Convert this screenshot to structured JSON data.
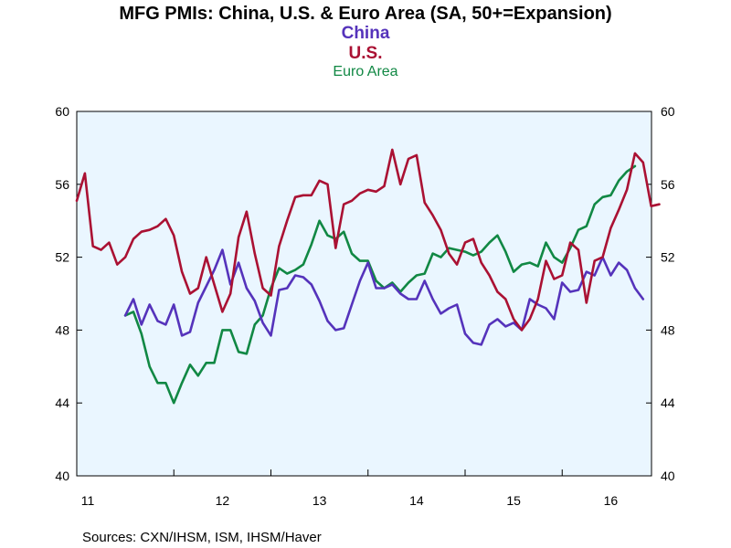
{
  "chart_data": {
    "type": "line",
    "title": "MFG PMIs: China, U.S. & Euro Area (SA, 50+=Expansion)",
    "legend": [
      {
        "name": "China",
        "color": "#5533bb"
      },
      {
        "name": "U.S.",
        "color": "#aa1133"
      },
      {
        "name": "Euro Area",
        "color": "#118844"
      }
    ],
    "ylim": [
      40,
      60
    ],
    "yticks": [
      40,
      44,
      48,
      52,
      56,
      60
    ],
    "yticks_labels": [
      "40",
      "44",
      "48",
      "52",
      "56",
      "60"
    ],
    "xlim": [
      2011.0,
      2016.92
    ],
    "xticks": [
      {
        "label": "11",
        "x": 2011.0
      },
      {
        "label": "12",
        "x": 2012.0
      },
      {
        "label": "13",
        "x": 2013.0
      },
      {
        "label": "14",
        "x": 2014.0
      },
      {
        "label": "15",
        "x": 2015.0
      },
      {
        "label": "16",
        "x": 2016.0
      }
    ],
    "series": [
      {
        "name": "China",
        "color": "#5533bb",
        "start": 2011.5,
        "values": [
          48.8,
          49.7,
          48.3,
          49.4,
          48.5,
          48.3,
          49.4,
          47.7,
          47.9,
          49.5,
          50.4,
          51.3,
          52.4,
          50.5,
          51.7,
          50.3,
          49.6,
          48.4,
          47.7,
          50.2,
          50.3,
          51.0,
          50.9,
          50.5,
          49.6,
          48.5,
          48.0,
          48.1,
          49.4,
          50.7,
          51.7,
          50.3,
          50.3,
          50.5,
          50.0,
          49.7,
          49.7,
          50.7,
          49.7,
          48.9,
          49.2,
          49.4,
          47.8,
          47.3,
          47.2,
          48.3,
          48.6,
          48.2,
          48.4,
          48.0,
          49.7,
          49.4,
          49.2,
          48.6,
          50.6,
          50.1,
          50.2,
          51.2,
          51.0,
          52.0,
          51.0,
          51.7,
          51.3,
          50.3,
          49.7
        ]
      },
      {
        "name": "U.S.",
        "color": "#aa1133",
        "start": 2011.0,
        "values": [
          55.1,
          56.6,
          52.6,
          52.4,
          52.8,
          51.6,
          52.0,
          53.0,
          53.4,
          53.5,
          53.7,
          54.1,
          53.2,
          51.2,
          50.0,
          50.3,
          52.0,
          50.5,
          49.0,
          50.0,
          53.1,
          54.5,
          52.2,
          50.3,
          49.9,
          52.6,
          54.0,
          55.3,
          55.4,
          55.4,
          56.2,
          56.0,
          52.5,
          54.9,
          55.1,
          55.5,
          55.7,
          55.6,
          55.9,
          57.9,
          56.0,
          57.4,
          57.6,
          55.0,
          54.3,
          53.5,
          52.2,
          51.6,
          52.8,
          53.0,
          51.7,
          51.0,
          50.1,
          49.7,
          48.6,
          48.0,
          48.6,
          49.7,
          51.8,
          50.8,
          51.0,
          52.8,
          52.4,
          49.5,
          51.8,
          52.0,
          53.6,
          54.6,
          55.7,
          57.7,
          57.2,
          54.8,
          54.9
        ]
      },
      {
        "name": "Euro Area",
        "color": "#118844",
        "start": 2011.5,
        "values": [
          48.8,
          49.0,
          47.8,
          46.0,
          45.1,
          45.1,
          44.0,
          45.1,
          46.1,
          45.5,
          46.2,
          46.2,
          48.0,
          48.0,
          46.8,
          46.7,
          48.3,
          48.8,
          50.3,
          51.4,
          51.1,
          51.3,
          51.6,
          52.7,
          54.0,
          53.2,
          53.0,
          53.4,
          52.2,
          51.8,
          51.8,
          50.7,
          50.3,
          50.6,
          50.1,
          50.6,
          51.0,
          51.1,
          52.2,
          52.0,
          52.5,
          52.4,
          52.3,
          52.1,
          52.3,
          52.8,
          53.2,
          52.3,
          51.2,
          51.6,
          51.7,
          51.5,
          52.8,
          52.0,
          51.7,
          52.5,
          53.5,
          53.7,
          54.9,
          55.3,
          55.4,
          56.2,
          56.7,
          57.0
        ]
      }
    ],
    "sources": "Sources:  CXN/IHSM, ISM, IHSM/Haver",
    "grid": false
  }
}
